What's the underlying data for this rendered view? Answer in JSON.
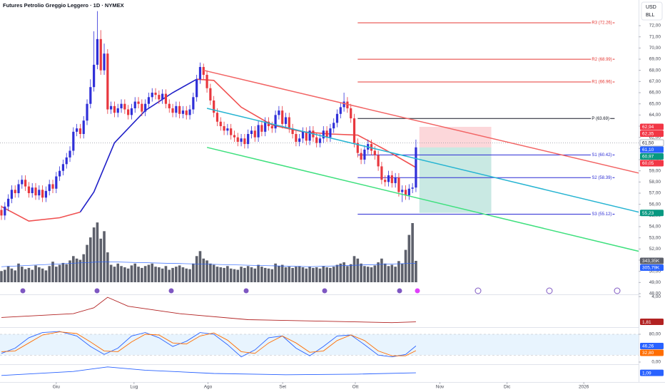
{
  "chart_data": {
    "type": "candlestick",
    "title": "Futures Petrolio Greggio Leggero · 1D · NYMEX",
    "currency": "USD",
    "unit": "BLL",
    "xlim": [
      0,
      186
    ],
    "xticks": [
      {
        "value": 16,
        "label": "Giu"
      },
      {
        "value": 38.7,
        "label": "Lug"
      },
      {
        "value": 60.3,
        "label": "Ago"
      },
      {
        "value": 82.1,
        "label": "Set"
      },
      {
        "value": 103.3,
        "label": "Ott"
      },
      {
        "value": 128,
        "label": "Nov"
      },
      {
        "value": 147.6,
        "label": "Dic"
      },
      {
        "value": 170,
        "label": "2026"
      }
    ],
    "ylim": [
      48,
      74.3
    ],
    "yticks": [
      {
        "value": 48,
        "label": "48,00"
      },
      {
        "value": 49,
        "label": "49,00"
      },
      {
        "value": 50,
        "label": "50,00"
      },
      {
        "value": 51,
        "label": "51,00"
      },
      {
        "value": 52,
        "label": "52,00"
      },
      {
        "value": 53,
        "label": "53,00"
      },
      {
        "value": 54,
        "label": "54,00"
      },
      {
        "value": 55,
        "label": "55,00"
      },
      {
        "value": 56,
        "label": "56,00"
      },
      {
        "value": 57,
        "label": "57,00"
      },
      {
        "value": 58,
        "label": "58,00"
      },
      {
        "value": 59,
        "label": "59,00"
      },
      {
        "value": 60,
        "label": "60,00"
      },
      {
        "value": 61,
        "label": "61,00"
      },
      {
        "value": 62,
        "label": "62,00"
      },
      {
        "value": 63,
        "label": "63,00"
      },
      {
        "value": 64,
        "label": "64,00"
      },
      {
        "value": 65,
        "label": "65,00"
      },
      {
        "value": 66,
        "label": "66,00"
      },
      {
        "value": 67,
        "label": "67,00"
      },
      {
        "value": 68,
        "label": "68,00"
      },
      {
        "value": 69,
        "label": "69,00"
      },
      {
        "value": 70,
        "label": "70,00"
      },
      {
        "value": 71,
        "label": "71,00"
      },
      {
        "value": 72,
        "label": "72,00"
      }
    ],
    "up_color": "#2f2fd8",
    "down_color": "#e8373e",
    "candles": {
      "open": [
        55.5,
        55.0,
        55.8,
        56.5,
        57.3,
        57.0,
        57.8,
        58.2,
        57.6,
        57.0,
        57.5,
        56.8,
        57.3,
        56.6,
        57.2,
        57.8,
        57.4,
        58.5,
        59.0,
        59.6,
        60.2,
        60.8,
        62.5,
        62.8,
        62.3,
        63.5,
        65.0,
        66.5,
        68.5,
        70.8,
        68.0,
        69.5,
        64.5,
        64.8,
        64.2,
        64.6,
        65.0,
        64.5,
        64.0,
        64.6,
        65.2,
        65.0,
        64.3,
        65.0,
        65.6,
        66.0,
        65.8,
        65.4,
        65.9,
        65.0,
        64.6,
        64.2,
        64.8,
        64.1,
        64.4,
        64.0,
        64.5,
        65.6,
        67.2,
        68.3,
        67.6,
        66.4,
        65.3,
        64.2,
        63.4,
        63.0,
        62.6,
        62.8,
        62.2,
        62.0,
        61.6,
        61.9,
        61.4,
        62.3,
        62.6,
        62.0,
        63.1,
        62.5,
        63.4,
        63.0,
        62.8,
        64.0,
        64.4,
        63.2,
        63.8,
        62.8,
        62.3,
        61.6,
        61.9,
        62.5,
        61.7,
        62.6,
        62.0,
        61.5,
        61.9,
        62.6,
        62.0,
        62.8,
        63.3,
        64.1,
        64.7,
        65.2,
        64.6,
        63.7,
        61.5,
        60.6,
        60.0,
        60.9,
        61.4,
        60.8,
        60.4,
        59.4,
        58.2,
        58.0,
        58.6,
        57.9,
        58.4,
        57.1,
        57.3,
        56.8,
        57.4,
        57.5
      ],
      "high": [
        55.9,
        56.2,
        56.9,
        57.7,
        57.7,
        58.2,
        58.6,
        58.6,
        58.0,
        57.9,
        57.9,
        57.7,
        57.7,
        57.6,
        58.2,
        58.2,
        58.9,
        59.4,
        60.0,
        60.6,
        61.2,
        62.9,
        63.2,
        63.2,
        63.9,
        65.4,
        67.2,
        71.5,
        73.3,
        71.6,
        70.4,
        69.9,
        65.2,
        65.2,
        65.0,
        65.4,
        65.4,
        64.9,
        65.0,
        65.6,
        65.6,
        65.4,
        65.4,
        66.0,
        66.4,
        66.4,
        66.2,
        66.3,
        66.3,
        65.4,
        65.0,
        65.2,
        65.2,
        64.8,
        64.8,
        64.9,
        66.0,
        67.6,
        68.7,
        68.6,
        68.0,
        66.8,
        65.7,
        64.6,
        63.8,
        63.4,
        63.2,
        63.2,
        62.6,
        62.4,
        62.3,
        62.3,
        62.7,
        63.0,
        63.0,
        63.5,
        63.5,
        63.8,
        63.8,
        63.4,
        64.4,
        64.8,
        64.8,
        64.2,
        64.2,
        63.2,
        62.7,
        62.3,
        62.9,
        62.9,
        63.0,
        63.0,
        62.4,
        62.3,
        63.0,
        63.0,
        63.2,
        63.7,
        64.5,
        65.1,
        66.0,
        65.6,
        65.0,
        64.1,
        61.9,
        61.0,
        61.3,
        61.8,
        61.8,
        61.2,
        60.8,
        59.8,
        58.6,
        59.0,
        59.0,
        58.8,
        58.8,
        57.7,
        57.7,
        57.8,
        57.9,
        61.8
      ],
      "low": [
        54.6,
        54.6,
        55.4,
        56.1,
        56.6,
        56.6,
        57.4,
        57.2,
        56.6,
        56.6,
        56.4,
        56.4,
        56.2,
        56.2,
        56.8,
        57.0,
        57.0,
        58.1,
        58.6,
        59.2,
        59.8,
        60.4,
        62.1,
        61.9,
        61.9,
        63.1,
        64.6,
        66.1,
        68.1,
        67.6,
        67.6,
        64.1,
        64.1,
        63.8,
        63.8,
        64.2,
        64.1,
        63.6,
        63.6,
        64.2,
        64.6,
        63.9,
        63.9,
        64.6,
        65.2,
        65.4,
        65.0,
        65.0,
        64.6,
        64.2,
        63.8,
        63.8,
        63.7,
        63.7,
        63.6,
        63.6,
        64.1,
        65.2,
        66.8,
        67.2,
        66.0,
        64.9,
        63.8,
        63.0,
        62.6,
        62.2,
        62.2,
        61.8,
        61.6,
        61.2,
        61.2,
        61.0,
        61.0,
        61.9,
        61.6,
        61.6,
        62.1,
        62.1,
        62.6,
        62.4,
        62.4,
        63.6,
        62.8,
        62.8,
        62.4,
        61.9,
        61.2,
        61.2,
        61.5,
        61.3,
        61.3,
        61.6,
        61.1,
        61.1,
        61.5,
        61.6,
        61.6,
        62.4,
        62.9,
        63.7,
        64.3,
        64.2,
        63.3,
        61.1,
        60.2,
        59.6,
        59.6,
        60.5,
        60.4,
        60.0,
        59.0,
        57.8,
        57.6,
        57.6,
        57.5,
        57.5,
        56.7,
        56.2,
        56.4,
        56.4,
        57.0,
        57.1
      ],
      "close": [
        55.0,
        55.8,
        56.5,
        57.3,
        57.0,
        57.8,
        58.2,
        57.6,
        57.0,
        57.5,
        56.8,
        57.3,
        56.6,
        57.2,
        57.8,
        57.4,
        58.5,
        59.0,
        59.6,
        60.2,
        60.8,
        62.5,
        62.8,
        62.3,
        63.5,
        65.0,
        66.5,
        68.5,
        70.8,
        68.0,
        69.5,
        64.5,
        64.8,
        64.2,
        64.6,
        65.0,
        64.5,
        64.0,
        64.6,
        65.2,
        65.0,
        64.3,
        65.0,
        65.6,
        66.0,
        65.8,
        65.4,
        65.9,
        65.0,
        64.6,
        64.2,
        64.8,
        64.1,
        64.4,
        64.0,
        64.5,
        65.6,
        67.2,
        68.3,
        67.6,
        66.4,
        65.3,
        64.2,
        63.4,
        63.0,
        62.6,
        62.8,
        62.2,
        62.0,
        61.6,
        61.9,
        61.4,
        62.3,
        62.6,
        62.0,
        63.1,
        62.5,
        63.4,
        63.0,
        62.8,
        64.0,
        64.4,
        63.2,
        63.8,
        62.8,
        62.3,
        61.6,
        61.9,
        62.5,
        61.7,
        62.6,
        62.0,
        61.5,
        61.9,
        62.6,
        62.0,
        62.8,
        63.3,
        64.1,
        64.7,
        65.2,
        64.6,
        63.7,
        61.5,
        60.6,
        60.0,
        60.9,
        61.4,
        60.8,
        60.4,
        59.4,
        58.2,
        58.0,
        58.6,
        57.9,
        58.4,
        57.1,
        57.3,
        56.8,
        57.4,
        57.5,
        61.1
      ]
    },
    "ma_lines": [
      {
        "color": "#f05050",
        "x": [
          0,
          8,
          17,
          23
        ],
        "values": [
          55.8,
          54.5,
          54.8,
          55.3
        ]
      },
      {
        "color": "#1f1fc8",
        "x": [
          23,
          27,
          33,
          42,
          50,
          57
        ],
        "values": [
          55.3,
          57.1,
          61.5,
          64.4,
          66.0,
          67.2
        ]
      },
      {
        "color": "#f05050",
        "x": [
          57,
          62,
          70,
          79,
          88,
          96,
          104,
          112,
          121
        ],
        "values": [
          67.2,
          67.1,
          64.7,
          63.1,
          62.5,
          62.3,
          62.2,
          60.9,
          59.3
        ]
      }
    ],
    "trend_lines": [
      {
        "color": "#f26464",
        "x": [
          59,
          186
        ],
        "values": [
          68.0,
          58.8
        ]
      },
      {
        "color": "#26b4d2",
        "x": [
          60,
          186
        ],
        "values": [
          64.6,
          55.3
        ]
      },
      {
        "color": "#3fe07e",
        "x": [
          60,
          186
        ],
        "values": [
          61.1,
          51.8
        ]
      }
    ],
    "pivots": {
      "x": [
        104,
        179
      ],
      "levels": [
        {
          "value": 72.26,
          "label": "R3 (72.26)",
          "color": "#e53935"
        },
        {
          "value": 68.99,
          "label": "R2 (68.99)",
          "color": "#e53935"
        },
        {
          "value": 66.96,
          "label": "R1 (66.96)",
          "color": "#e53935"
        },
        {
          "value": 63.69,
          "label": "P (63.69)",
          "color": "#131722"
        },
        {
          "value": 60.42,
          "label": "S1 (60.42)",
          "color": "#2a2ad4"
        },
        {
          "value": 58.39,
          "label": "S2 (58.39)",
          "color": "#2a2ad4"
        },
        {
          "value": 55.12,
          "label": "S3 (55.12)",
          "color": "#2a2ad4"
        }
      ]
    },
    "position_box": {
      "x": [
        122,
        143
      ],
      "stop_color": "rgba(242,54,69,0.2)",
      "target_color": "rgba(8,153,129,0.22)"
    },
    "price_tags": [
      {
        "value": 62.94,
        "label": "62,94",
        "color": "#f23645",
        "text_color": "#ffffff"
      },
      {
        "value": 62.35,
        "label": "62,35",
        "color": "#f23645",
        "text_color": "#ffffff"
      },
      {
        "value": 61.5,
        "label": "61,50",
        "color": "#ffffff",
        "text_color": "#131722"
      },
      {
        "value": 61.1,
        "label": "61,10",
        "color": "#2962ff",
        "text_color": "#ffffff"
      },
      {
        "value": 60.97,
        "label": "60,97",
        "color": "#089981",
        "text_color": "#ffffff"
      },
      {
        "value": 60.05,
        "label": "60,05",
        "color": "#f23645",
        "text_color": "#ffffff"
      },
      {
        "value": 55.23,
        "label": "55,23",
        "color": "#089981",
        "text_color": "#ffffff"
      }
    ],
    "volume": {
      "color": "#5d606b",
      "ylim": [
        0,
        4532
      ],
      "values": [
        180,
        200,
        260,
        220,
        190,
        300,
        250,
        210,
        230,
        200,
        270,
        240,
        220,
        190,
        260,
        330,
        250,
        280,
        310,
        290,
        350,
        420,
        380,
        360,
        450,
        600,
        720,
        880,
        960,
        700,
        820,
        480,
        280,
        250,
        300,
        260,
        240,
        220,
        270,
        300,
        250,
        230,
        260,
        280,
        300,
        250,
        240,
        220,
        260,
        200,
        230,
        250,
        270,
        240,
        220,
        210,
        300,
        420,
        500,
        380,
        350,
        300,
        280,
        250,
        240,
        230,
        260,
        220,
        210,
        200,
        250,
        230,
        260,
        240,
        220,
        280,
        250,
        230,
        220,
        210,
        300,
        260,
        280,
        240,
        250,
        230,
        250,
        260,
        240,
        220,
        250,
        230,
        240,
        220,
        260,
        240,
        230,
        250,
        280,
        300,
        320,
        260,
        290,
        420,
        380,
        300,
        260,
        250,
        240,
        270,
        320,
        380,
        300,
        260,
        280,
        250,
        340,
        300,
        520,
        760,
        950,
        343.35
      ],
      "ma": {
        "color": "#2962ff",
        "x": [
          0,
          30,
          60,
          90,
          121
        ],
        "values": [
          250,
          330,
          290,
          250,
          305.79
        ]
      },
      "tags": [
        {
          "value": 343.35,
          "label": "343,35K",
          "color": "#5d606b",
          "text_color": "#ffffff"
        },
        {
          "value": 305.79,
          "label": "305,79K",
          "color": "#2962ff",
          "text_color": "#ffffff"
        }
      ]
    },
    "panes": [
      {
        "ylim": [
          1.35,
          4.13
        ],
        "yticks": [
          {
            "value": 4,
            "label": "4,00"
          }
        ],
        "lines": [
          {
            "color": "#b22222",
            "x": [
              0,
              21,
              27,
              31,
              37,
              52,
              72,
              93,
              114,
              121
            ],
            "values": [
              2.19,
              2.52,
              3.03,
              3.94,
              3.16,
              2.52,
              2.0,
              1.87,
              1.74,
              1.81
            ]
          }
        ],
        "tags": [
          {
            "value": 1.81,
            "label": "1,81",
            "color": "#b22222",
            "text_color": "#ffffff"
          }
        ]
      },
      {
        "ylim": [
          -6.2,
          98.5
        ],
        "yticks": [
          {
            "value": 80,
            "label": "80,00"
          },
          {
            "value": 0,
            "label": "0,00"
          }
        ],
        "band": [
          20,
          80
        ],
        "lines": [
          {
            "color": "#2962ff",
            "x": [
              0,
              4,
              8,
              12,
              17,
              22,
              26,
              30,
              34,
              38,
              42,
              46,
              50,
              54,
              58,
              62,
              66,
              70,
              74,
              78,
              82,
              86,
              90,
              94,
              98,
              102,
              106,
              110,
              114,
              118,
              121
            ],
            "values": [
              25,
              40,
              70,
              85,
              88,
              75,
              45,
              22,
              40,
              75,
              85,
              70,
              45,
              60,
              85,
              80,
              50,
              15,
              35,
              70,
              75,
              40,
              18,
              45,
              75,
              78,
              50,
              20,
              15,
              22,
              46.26
            ]
          },
          {
            "color": "#ff6d00",
            "x": [
              0,
              4,
              8,
              12,
              17,
              22,
              26,
              30,
              34,
              38,
              42,
              46,
              50,
              54,
              58,
              62,
              66,
              70,
              74,
              78,
              82,
              86,
              90,
              94,
              98,
              102,
              106,
              110,
              114,
              118,
              121
            ],
            "values": [
              30,
              32,
              55,
              78,
              87,
              82,
              58,
              32,
              30,
              58,
              80,
              78,
              55,
              52,
              75,
              84,
              63,
              30,
              25,
              55,
              75,
              55,
              28,
              32,
              62,
              78,
              62,
              32,
              18,
              18,
              32.8
            ]
          }
        ],
        "tags": [
          {
            "value": 46.26,
            "label": "46,26",
            "color": "#2962ff",
            "text_color": "#ffffff"
          },
          {
            "value": 32.8,
            "label": "32,80",
            "color": "#ff6d00",
            "text_color": "#ffffff"
          }
        ]
      },
      {
        "ylim": [
          -0.31,
          2.29
        ],
        "yticks": [],
        "lines": [
          {
            "color": "#2962ff",
            "x": [
              0,
              21,
              31,
              42,
              62,
              83,
              104,
              121
            ],
            "values": [
              0.69,
              1.29,
              1.99,
              1.49,
              0.99,
              0.79,
              0.89,
              1.09
            ]
          }
        ],
        "tags": [
          {
            "value": 1.09,
            "label": "1,09",
            "color": "#2962ff",
            "text_color": "#ffffff"
          }
        ]
      }
    ]
  }
}
